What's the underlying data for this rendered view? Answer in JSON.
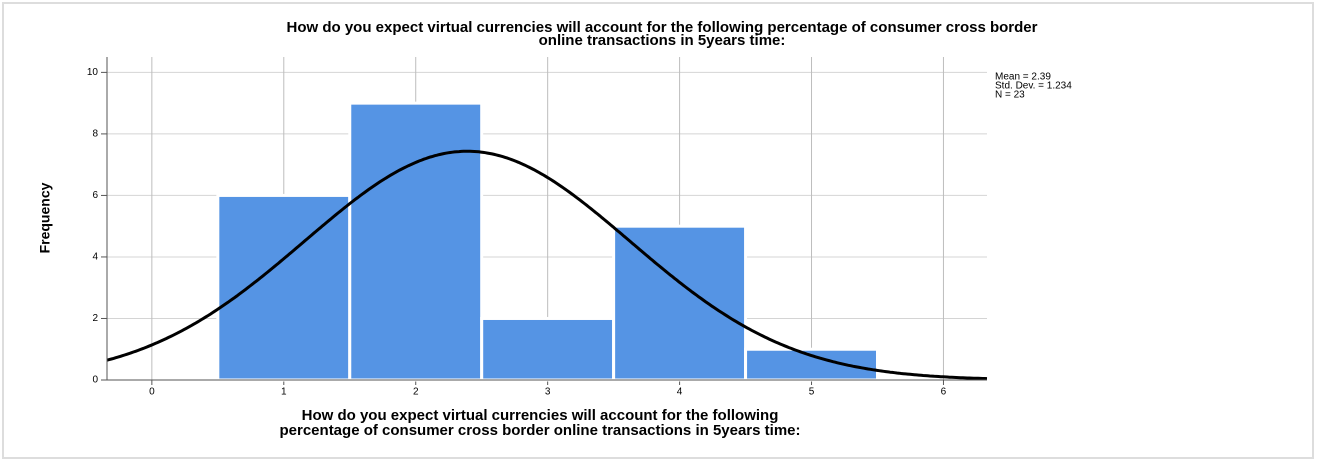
{
  "chart_data": {
    "type": "histogram",
    "title": [
      "How do you expect virtual currencies will account for the following percentage of consumer cross border",
      "online transactions in 5years time:"
    ],
    "xlabel": [
      "How do you expect virtual currencies will account for the following",
      "percentage of consumer cross border online transactions in 5years time:"
    ],
    "ylabel": "Frequency",
    "bins": [
      0.5,
      1.5,
      2.5,
      3.5,
      4.5,
      5.5
    ],
    "values": [
      6,
      9,
      2,
      5,
      1
    ],
    "color": "#5594e4",
    "xlim": [
      -0.34,
      6.33
    ],
    "xticks": [
      0,
      1,
      2,
      3,
      4,
      5,
      6
    ],
    "ylim": [
      0,
      10.5
    ],
    "yticks": [
      0,
      2,
      4,
      6,
      8,
      10
    ],
    "grid": true,
    "stats": [
      {
        "value": 2.39,
        "label": "Mean = 2.39"
      },
      {
        "value": 1.234,
        "label": "Std. Dev. = 1.234"
      },
      {
        "value": 23,
        "label": "N = 23"
      }
    ]
  }
}
